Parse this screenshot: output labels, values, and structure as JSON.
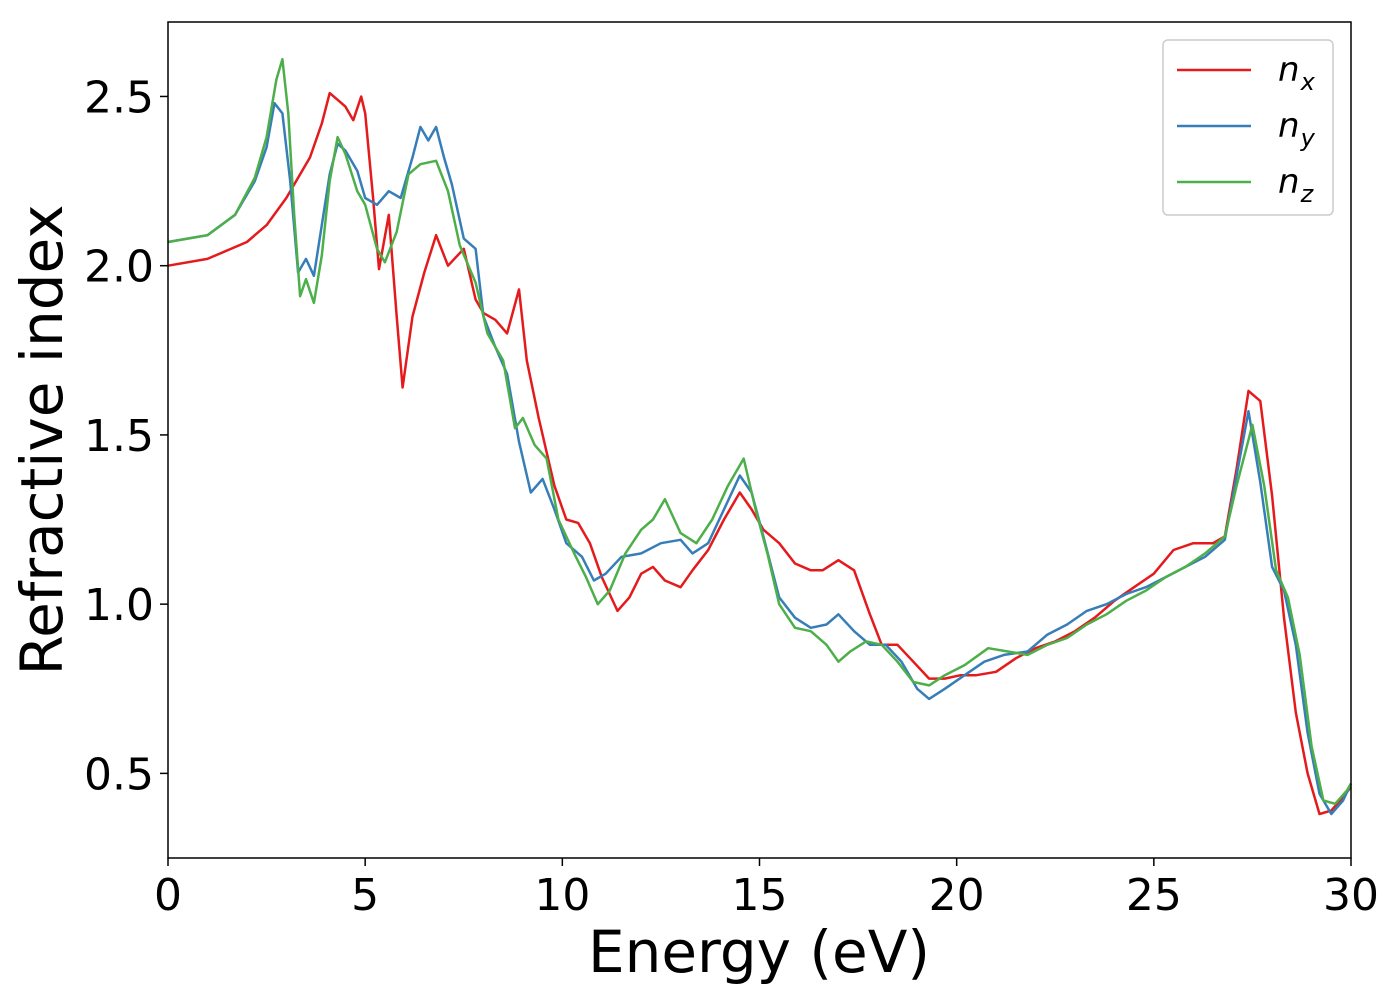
{
  "chart_data": {
    "type": "line",
    "xlabel": "Energy (eV)",
    "ylabel": "Refractive index",
    "xlim": [
      0,
      30
    ],
    "ylim": [
      0.25,
      2.72
    ],
    "xticks": [
      "0",
      "5",
      "10",
      "15",
      "20",
      "25",
      "30"
    ],
    "yticks": [
      "0.5",
      "1.0",
      "1.5",
      "2.0",
      "2.5"
    ],
    "grid": false,
    "legend_position": "top-right",
    "series": [
      {
        "name": "n_x",
        "label_main": "n",
        "label_sub": "x",
        "color": "#e41a1c",
        "points": [
          [
            0,
            2.0
          ],
          [
            1,
            2.02
          ],
          [
            2,
            2.07
          ],
          [
            2.5,
            2.12
          ],
          [
            3,
            2.2
          ],
          [
            3.3,
            2.26
          ],
          [
            3.6,
            2.32
          ],
          [
            3.9,
            2.42
          ],
          [
            4.1,
            2.51
          ],
          [
            4.3,
            2.49
          ],
          [
            4.5,
            2.47
          ],
          [
            4.7,
            2.43
          ],
          [
            4.9,
            2.5
          ],
          [
            5.0,
            2.45
          ],
          [
            5.2,
            2.2
          ],
          [
            5.35,
            1.99
          ],
          [
            5.6,
            2.15
          ],
          [
            5.8,
            1.85
          ],
          [
            5.95,
            1.64
          ],
          [
            6.2,
            1.85
          ],
          [
            6.5,
            1.98
          ],
          [
            6.8,
            2.09
          ],
          [
            7.1,
            2.0
          ],
          [
            7.5,
            2.05
          ],
          [
            7.8,
            1.9
          ],
          [
            8.0,
            1.86
          ],
          [
            8.3,
            1.84
          ],
          [
            8.6,
            1.8
          ],
          [
            8.9,
            1.93
          ],
          [
            9.1,
            1.72
          ],
          [
            9.4,
            1.55
          ],
          [
            9.8,
            1.35
          ],
          [
            10.1,
            1.25
          ],
          [
            10.4,
            1.24
          ],
          [
            10.7,
            1.18
          ],
          [
            11.0,
            1.08
          ],
          [
            11.4,
            0.98
          ],
          [
            11.7,
            1.02
          ],
          [
            12.0,
            1.09
          ],
          [
            12.3,
            1.11
          ],
          [
            12.6,
            1.07
          ],
          [
            13.0,
            1.05
          ],
          [
            13.3,
            1.1
          ],
          [
            13.7,
            1.16
          ],
          [
            14.1,
            1.25
          ],
          [
            14.5,
            1.33
          ],
          [
            14.8,
            1.28
          ],
          [
            15.1,
            1.22
          ],
          [
            15.5,
            1.18
          ],
          [
            15.9,
            1.12
          ],
          [
            16.3,
            1.1
          ],
          [
            16.6,
            1.1
          ],
          [
            17.0,
            1.13
          ],
          [
            17.4,
            1.1
          ],
          [
            17.8,
            0.97
          ],
          [
            18.1,
            0.88
          ],
          [
            18.5,
            0.88
          ],
          [
            18.9,
            0.83
          ],
          [
            19.3,
            0.78
          ],
          [
            19.7,
            0.78
          ],
          [
            20.1,
            0.79
          ],
          [
            20.5,
            0.79
          ],
          [
            21.0,
            0.8
          ],
          [
            21.5,
            0.84
          ],
          [
            22.0,
            0.87
          ],
          [
            22.5,
            0.89
          ],
          [
            23.0,
            0.92
          ],
          [
            23.5,
            0.96
          ],
          [
            24.0,
            1.01
          ],
          [
            24.5,
            1.05
          ],
          [
            25.0,
            1.09
          ],
          [
            25.5,
            1.16
          ],
          [
            26.0,
            1.18
          ],
          [
            26.5,
            1.18
          ],
          [
            26.8,
            1.2
          ],
          [
            27.1,
            1.4
          ],
          [
            27.4,
            1.63
          ],
          [
            27.7,
            1.6
          ],
          [
            28.0,
            1.32
          ],
          [
            28.3,
            0.96
          ],
          [
            28.6,
            0.68
          ],
          [
            28.9,
            0.5
          ],
          [
            29.2,
            0.38
          ],
          [
            29.5,
            0.39
          ],
          [
            29.8,
            0.43
          ],
          [
            30,
            0.46
          ]
        ]
      },
      {
        "name": "n_y",
        "label_main": "n",
        "label_sub": "y",
        "color": "#377eb8",
        "points": [
          [
            0,
            2.07
          ],
          [
            1,
            2.09
          ],
          [
            1.7,
            2.15
          ],
          [
            2.2,
            2.25
          ],
          [
            2.5,
            2.35
          ],
          [
            2.7,
            2.48
          ],
          [
            2.9,
            2.45
          ],
          [
            3.1,
            2.25
          ],
          [
            3.3,
            1.98
          ],
          [
            3.5,
            2.02
          ],
          [
            3.7,
            1.97
          ],
          [
            3.9,
            2.12
          ],
          [
            4.1,
            2.27
          ],
          [
            4.3,
            2.36
          ],
          [
            4.5,
            2.34
          ],
          [
            4.8,
            2.28
          ],
          [
            5.0,
            2.2
          ],
          [
            5.3,
            2.18
          ],
          [
            5.6,
            2.22
          ],
          [
            5.9,
            2.2
          ],
          [
            6.2,
            2.32
          ],
          [
            6.4,
            2.41
          ],
          [
            6.6,
            2.37
          ],
          [
            6.8,
            2.41
          ],
          [
            7.0,
            2.32
          ],
          [
            7.2,
            2.24
          ],
          [
            7.5,
            2.08
          ],
          [
            7.8,
            2.05
          ],
          [
            8.0,
            1.85
          ],
          [
            8.3,
            1.76
          ],
          [
            8.6,
            1.68
          ],
          [
            8.9,
            1.48
          ],
          [
            9.2,
            1.33
          ],
          [
            9.5,
            1.37
          ],
          [
            9.8,
            1.28
          ],
          [
            10.1,
            1.18
          ],
          [
            10.5,
            1.14
          ],
          [
            10.8,
            1.07
          ],
          [
            11.1,
            1.09
          ],
          [
            11.5,
            1.14
          ],
          [
            12.0,
            1.15
          ],
          [
            12.5,
            1.18
          ],
          [
            13.0,
            1.19
          ],
          [
            13.3,
            1.15
          ],
          [
            13.7,
            1.18
          ],
          [
            14.1,
            1.28
          ],
          [
            14.5,
            1.38
          ],
          [
            14.8,
            1.33
          ],
          [
            15.1,
            1.2
          ],
          [
            15.5,
            1.02
          ],
          [
            15.9,
            0.96
          ],
          [
            16.3,
            0.93
          ],
          [
            16.7,
            0.94
          ],
          [
            17.0,
            0.97
          ],
          [
            17.4,
            0.92
          ],
          [
            17.8,
            0.88
          ],
          [
            18.2,
            0.88
          ],
          [
            18.6,
            0.83
          ],
          [
            19.0,
            0.75
          ],
          [
            19.3,
            0.72
          ],
          [
            19.7,
            0.75
          ],
          [
            20.2,
            0.79
          ],
          [
            20.7,
            0.83
          ],
          [
            21.2,
            0.85
          ],
          [
            21.8,
            0.86
          ],
          [
            22.3,
            0.91
          ],
          [
            22.8,
            0.94
          ],
          [
            23.3,
            0.98
          ],
          [
            23.8,
            1.0
          ],
          [
            24.3,
            1.03
          ],
          [
            24.8,
            1.05
          ],
          [
            25.3,
            1.08
          ],
          [
            25.8,
            1.11
          ],
          [
            26.3,
            1.14
          ],
          [
            26.8,
            1.19
          ],
          [
            27.1,
            1.38
          ],
          [
            27.4,
            1.57
          ],
          [
            27.7,
            1.36
          ],
          [
            28.0,
            1.11
          ],
          [
            28.3,
            1.04
          ],
          [
            28.6,
            0.88
          ],
          [
            28.9,
            0.62
          ],
          [
            29.2,
            0.44
          ],
          [
            29.5,
            0.38
          ],
          [
            29.8,
            0.42
          ],
          [
            30,
            0.47
          ]
        ]
      },
      {
        "name": "n_z",
        "label_main": "n",
        "label_sub": "z",
        "color": "#4daf4a",
        "points": [
          [
            0,
            2.07
          ],
          [
            1,
            2.09
          ],
          [
            1.7,
            2.15
          ],
          [
            2.2,
            2.26
          ],
          [
            2.5,
            2.38
          ],
          [
            2.75,
            2.55
          ],
          [
            2.9,
            2.61
          ],
          [
            3.05,
            2.45
          ],
          [
            3.2,
            2.15
          ],
          [
            3.35,
            1.91
          ],
          [
            3.5,
            1.96
          ],
          [
            3.7,
            1.89
          ],
          [
            3.9,
            2.03
          ],
          [
            4.1,
            2.25
          ],
          [
            4.3,
            2.38
          ],
          [
            4.5,
            2.33
          ],
          [
            4.8,
            2.22
          ],
          [
            5.0,
            2.18
          ],
          [
            5.3,
            2.05
          ],
          [
            5.5,
            2.01
          ],
          [
            5.8,
            2.1
          ],
          [
            6.1,
            2.27
          ],
          [
            6.4,
            2.3
          ],
          [
            6.8,
            2.31
          ],
          [
            7.1,
            2.22
          ],
          [
            7.4,
            2.06
          ],
          [
            7.8,
            1.95
          ],
          [
            8.1,
            1.8
          ],
          [
            8.5,
            1.72
          ],
          [
            8.8,
            1.52
          ],
          [
            9.0,
            1.55
          ],
          [
            9.3,
            1.47
          ],
          [
            9.6,
            1.43
          ],
          [
            9.9,
            1.25
          ],
          [
            10.3,
            1.15
          ],
          [
            10.6,
            1.08
          ],
          [
            10.9,
            1.0
          ],
          [
            11.2,
            1.04
          ],
          [
            11.6,
            1.15
          ],
          [
            12.0,
            1.22
          ],
          [
            12.3,
            1.25
          ],
          [
            12.6,
            1.31
          ],
          [
            13.0,
            1.21
          ],
          [
            13.4,
            1.18
          ],
          [
            13.8,
            1.25
          ],
          [
            14.2,
            1.35
          ],
          [
            14.6,
            1.43
          ],
          [
            14.9,
            1.28
          ],
          [
            15.2,
            1.15
          ],
          [
            15.5,
            1.0
          ],
          [
            15.9,
            0.93
          ],
          [
            16.3,
            0.92
          ],
          [
            16.7,
            0.88
          ],
          [
            17.0,
            0.83
          ],
          [
            17.3,
            0.86
          ],
          [
            17.7,
            0.89
          ],
          [
            18.1,
            0.88
          ],
          [
            18.5,
            0.83
          ],
          [
            18.9,
            0.77
          ],
          [
            19.3,
            0.76
          ],
          [
            19.7,
            0.79
          ],
          [
            20.2,
            0.82
          ],
          [
            20.8,
            0.87
          ],
          [
            21.3,
            0.86
          ],
          [
            21.8,
            0.85
          ],
          [
            22.3,
            0.88
          ],
          [
            22.8,
            0.9
          ],
          [
            23.3,
            0.94
          ],
          [
            23.8,
            0.97
          ],
          [
            24.3,
            1.01
          ],
          [
            24.8,
            1.04
          ],
          [
            25.3,
            1.08
          ],
          [
            25.8,
            1.11
          ],
          [
            26.3,
            1.15
          ],
          [
            26.8,
            1.2
          ],
          [
            27.1,
            1.35
          ],
          [
            27.5,
            1.53
          ],
          [
            27.8,
            1.35
          ],
          [
            28.1,
            1.1
          ],
          [
            28.4,
            1.02
          ],
          [
            28.7,
            0.85
          ],
          [
            29.0,
            0.58
          ],
          [
            29.3,
            0.42
          ],
          [
            29.6,
            0.41
          ],
          [
            29.9,
            0.45
          ],
          [
            30,
            0.47
          ]
        ]
      }
    ]
  }
}
